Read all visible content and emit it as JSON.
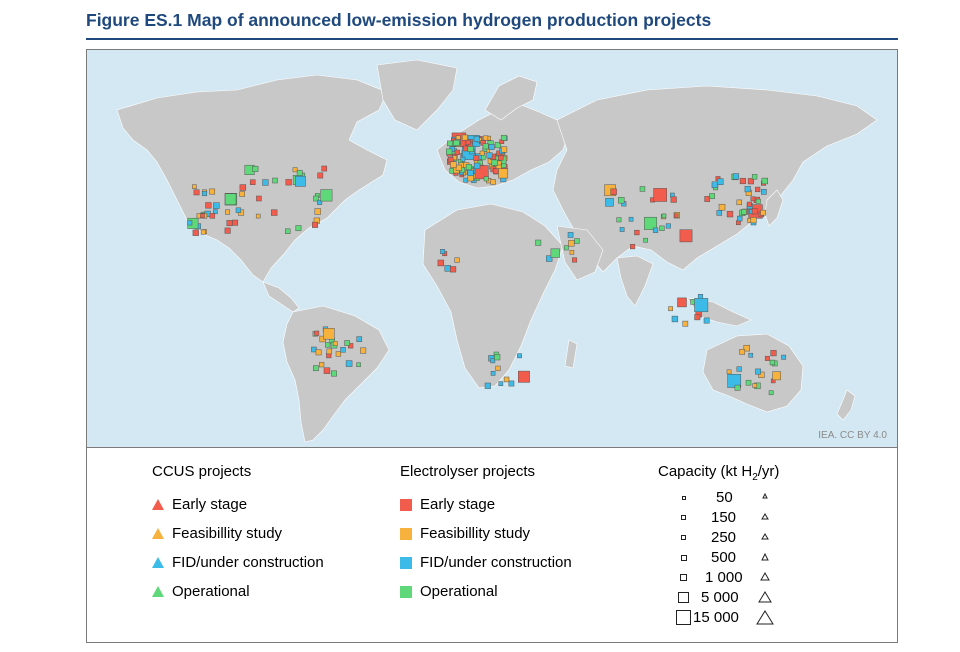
{
  "figure": {
    "title": "Figure ES.1  Map of announced low-emission hydrogen production projects",
    "credit": "IEA. CC BY 4.0"
  },
  "colors": {
    "ocean": "#d3e8f3",
    "land": "#c8c8c8",
    "early_stage": "#f15c4d",
    "feasibility_study": "#f7b13d",
    "fid_under_construction": "#3dbbe8",
    "operational": "#5fd87a"
  },
  "legend": {
    "ccus": {
      "heading": "CCUS projects",
      "items": [
        {
          "label": "Early stage",
          "color": "#f15c4d",
          "icon": "triangle"
        },
        {
          "label": "Feasibillity study",
          "color": "#f7b13d",
          "icon": "triangle"
        },
        {
          "label": "FID/under construction",
          "color": "#3dbbe8",
          "icon": "triangle"
        },
        {
          "label": "Operational",
          "color": "#5fd87a",
          "icon": "triangle"
        }
      ]
    },
    "electrolyser": {
      "heading": "Electrolyser projects",
      "items": [
        {
          "label": "Early stage",
          "color": "#f15c4d",
          "icon": "square"
        },
        {
          "label": "Feasibillity study",
          "color": "#f7b13d",
          "icon": "square"
        },
        {
          "label": "FID/under construction",
          "color": "#3dbbe8",
          "icon": "square"
        },
        {
          "label": "Operational",
          "color": "#5fd87a",
          "icon": "square"
        }
      ]
    },
    "capacity": {
      "heading_prefix": "Capacity (kt H",
      "heading_sub": "2",
      "heading_suffix": "/yr)",
      "values": [
        "50",
        "150",
        "250",
        "500",
        "1 000",
        "5 000",
        "15 000"
      ]
    }
  }
}
